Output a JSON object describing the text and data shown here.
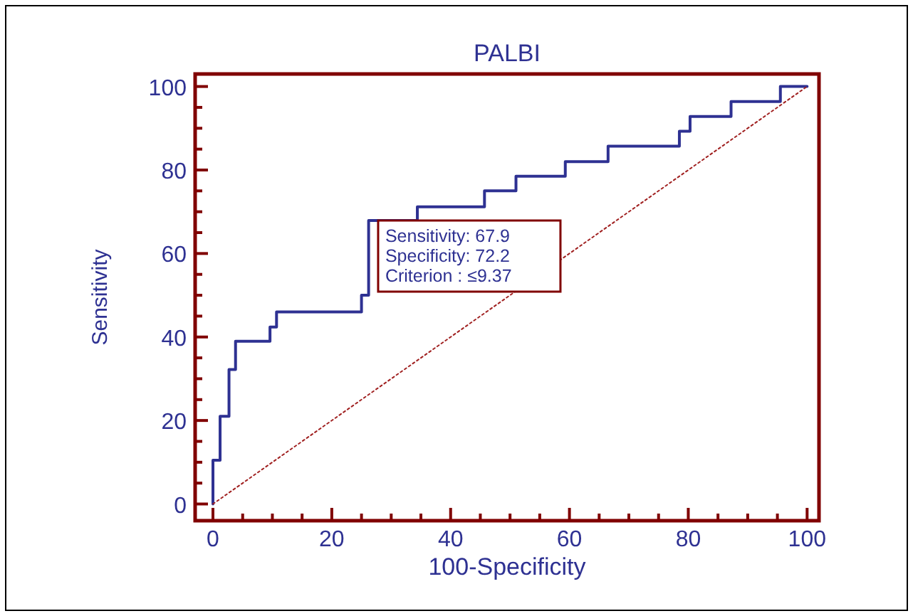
{
  "chart_data": {
    "type": "step",
    "title": "PALBI",
    "xlabel": "100-Specificity",
    "ylabel": "Sensitivity",
    "xlim": [
      -3,
      102
    ],
    "ylim": [
      -4,
      103
    ],
    "xticks": [
      0,
      {
        "value": 5,
        "label": null
      },
      {
        "value": 10,
        "label": null
      },
      {
        "value": 15,
        "label": null
      },
      20,
      {
        "value": 25,
        "label": null
      },
      {
        "value": 30,
        "label": null
      },
      {
        "value": 35,
        "label": null
      },
      40,
      {
        "value": 45,
        "label": null
      },
      {
        "value": 50,
        "label": null
      },
      {
        "value": 55,
        "label": null
      },
      60,
      {
        "value": 65,
        "label": null
      },
      {
        "value": 70,
        "label": null
      },
      {
        "value": 75,
        "label": null
      },
      80,
      {
        "value": 85,
        "label": null
      },
      {
        "value": 90,
        "label": null
      },
      {
        "value": 95,
        "label": null
      },
      100
    ],
    "yticks": [
      0,
      {
        "value": 5,
        "label": null
      },
      {
        "value": 10,
        "label": null
      },
      {
        "value": 15,
        "label": null
      },
      20,
      {
        "value": 25,
        "label": null
      },
      {
        "value": 30,
        "label": null
      },
      {
        "value": 35,
        "label": null
      },
      40,
      {
        "value": 45,
        "label": null
      },
      {
        "value": 50,
        "label": null
      },
      {
        "value": 55,
        "label": null
      },
      60,
      {
        "value": 65,
        "label": null
      },
      {
        "value": 70,
        "label": null
      },
      {
        "value": 75,
        "label": null
      },
      80,
      {
        "value": 85,
        "label": null
      },
      {
        "value": 90,
        "label": null
      },
      {
        "value": 95,
        "label": null
      },
      100
    ],
    "grid": false,
    "series": [
      {
        "color": "#2e3192",
        "x": [
          0,
          0,
          1.2,
          2.7,
          3.8,
          9.6,
          10.7,
          25,
          26.2,
          34.4,
          45.7,
          51,
          59.3,
          66.5,
          78.5,
          80.3,
          87.2,
          95.5,
          100
        ],
        "values": [
          0,
          10.5,
          21,
          32.2,
          39,
          42.4,
          46,
          50,
          67.9,
          71.2,
          75,
          78.5,
          82,
          85.7,
          89.3,
          92.8,
          96.4,
          100,
          100
        ]
      },
      {
        "type": "line",
        "color": "#a02020",
        "line_style": "dotted",
        "x": [
          0,
          100
        ],
        "values": [
          0,
          100
        ]
      }
    ],
    "annotations": [
      {
        "text": "Sensitivity: 67.9\nSpecificity: 72.2\nCriterion : ≤9.37",
        "x": 27.8,
        "y": 67.9
      }
    ]
  }
}
